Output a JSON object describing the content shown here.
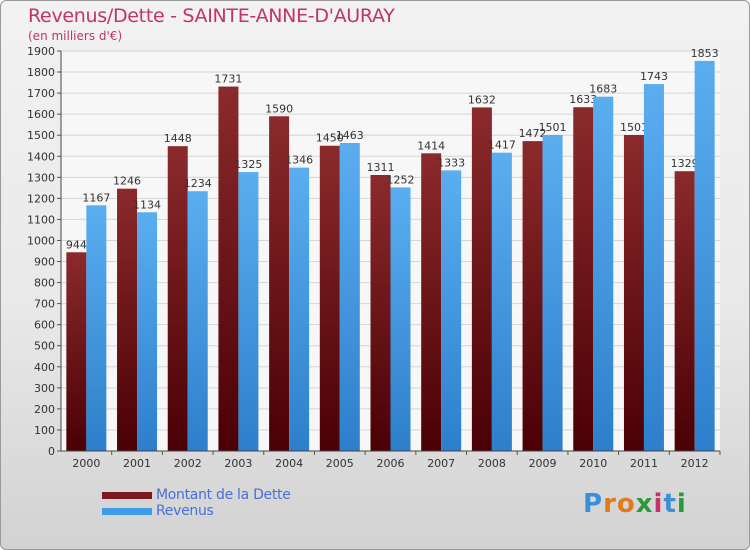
{
  "title": "Revenus/Dette - SAINTE-ANNE-D'AURAY",
  "subtitle": "(en milliers d'€)",
  "brand": "Proxiti",
  "colors": {
    "dette": "#7a1a1e",
    "revenus": "#3d9be9",
    "title": "#c2336a"
  },
  "legend": {
    "dette_label": "Montant de la Dette",
    "revenus_label": "Revenus"
  },
  "chart_data": {
    "type": "bar",
    "title": "Revenus/Dette - SAINTE-ANNE-D'AURAY",
    "subtitle": "(en milliers d'€)",
    "xlabel": "",
    "ylabel": "",
    "ylim": [
      0,
      1900
    ],
    "ytick_step": 100,
    "grid": true,
    "categories": [
      "2000",
      "2001",
      "2002",
      "2003",
      "2004",
      "2005",
      "2006",
      "2007",
      "2008",
      "2009",
      "2010",
      "2011",
      "2012"
    ],
    "series": [
      {
        "name": "Montant de la Dette",
        "values": [
          944,
          1246,
          1448,
          1731,
          1590,
          1450,
          1311,
          1414,
          1632,
          1472,
          1633,
          1501,
          1329
        ]
      },
      {
        "name": "Revenus",
        "values": [
          1167,
          1134,
          1234,
          1325,
          1346,
          1463,
          1252,
          1333,
          1417,
          1501,
          1683,
          1743,
          1853
        ]
      }
    ],
    "legend_position": "bottom-left"
  }
}
